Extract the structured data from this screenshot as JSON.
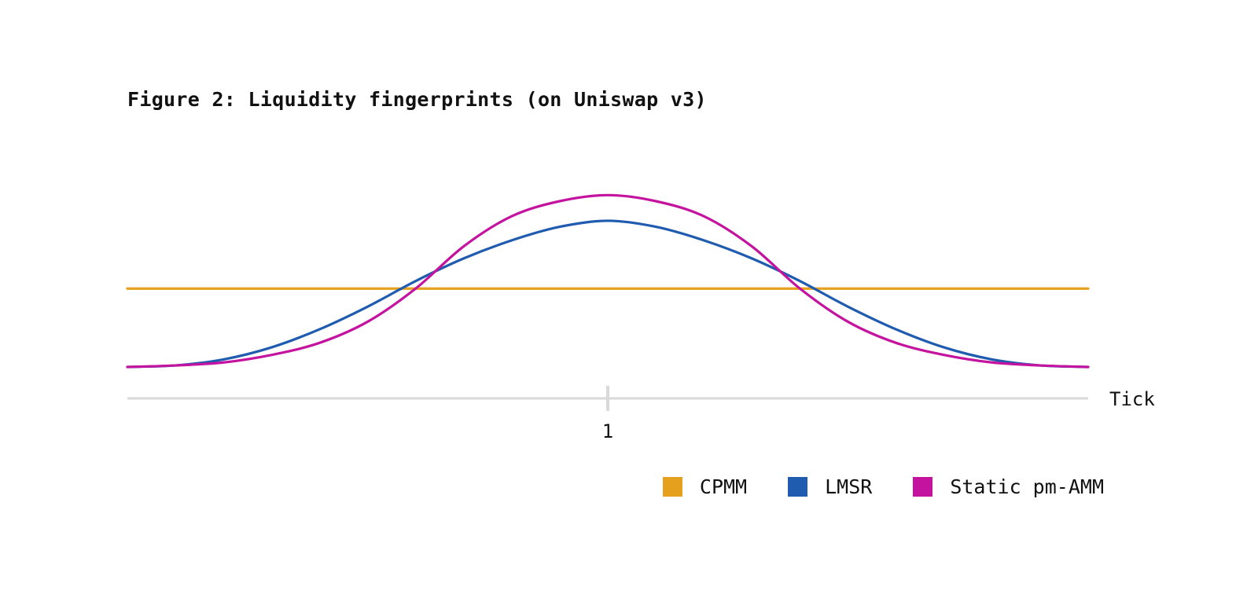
{
  "title": "Figure 2: Liquidity fingerprints (on Uniswap v3)",
  "chart_data": {
    "type": "line",
    "title": "Figure 2: Liquidity fingerprints (on Uniswap v3)",
    "xlabel": "Tick",
    "ylabel": "",
    "x_ticks": [
      {
        "value": 1,
        "label": "1"
      }
    ],
    "xlim": [
      0,
      2
    ],
    "ylim": [
      0,
      1.1
    ],
    "grid": false,
    "legend_position": "bottom-right",
    "series": [
      {
        "name": "CPMM",
        "color": "#E5A11D",
        "x": [
          0,
          2
        ],
        "y": [
          0.52,
          0.52
        ]
      },
      {
        "name": "LMSR",
        "color": "#1F5BAF",
        "x": [
          0,
          0.1,
          0.2,
          0.3,
          0.4,
          0.5,
          0.6,
          0.7,
          0.8,
          0.9,
          1.0,
          1.1,
          1.2,
          1.3,
          1.4,
          1.5,
          1.6,
          1.7,
          1.8,
          1.9,
          2.0
        ],
        "y": [
          0.0,
          0.01,
          0.05,
          0.13,
          0.25,
          0.4,
          0.57,
          0.72,
          0.84,
          0.93,
          0.97,
          0.93,
          0.84,
          0.72,
          0.57,
          0.4,
          0.25,
          0.13,
          0.05,
          0.01,
          0.0
        ]
      },
      {
        "name": "Static pm-AMM",
        "color": "#C4139E",
        "x": [
          0,
          0.1,
          0.2,
          0.3,
          0.4,
          0.5,
          0.6,
          0.7,
          0.8,
          0.9,
          1.0,
          1.1,
          1.2,
          1.3,
          1.4,
          1.5,
          1.6,
          1.7,
          1.8,
          1.9,
          2.0
        ],
        "y": [
          0.0,
          0.01,
          0.03,
          0.08,
          0.16,
          0.3,
          0.52,
          0.8,
          1.0,
          1.1,
          1.14,
          1.1,
          1.0,
          0.8,
          0.52,
          0.3,
          0.16,
          0.08,
          0.03,
          0.01,
          0.0
        ]
      }
    ]
  },
  "legend": [
    {
      "label": "CPMM",
      "color": "#E5A11D"
    },
    {
      "label": "LMSR",
      "color": "#1F5BAF"
    },
    {
      "label": "Static pm-AMM",
      "color": "#C4139E"
    }
  ]
}
